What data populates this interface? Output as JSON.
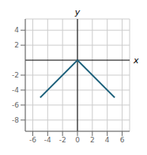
{
  "chart_data": {
    "type": "line",
    "xlabel": "x",
    "ylabel": "y",
    "x": [
      -5,
      0,
      5
    ],
    "values": [
      -5,
      0,
      -5
    ],
    "color": "#1a5f7a",
    "xlim": [
      -7,
      7
    ],
    "ylim": [
      -9.5,
      5.5
    ],
    "xticks": [
      -6,
      -4,
      -2,
      0,
      2,
      4,
      6
    ],
    "yticks": [
      -8,
      -6,
      -4,
      -2,
      2,
      4
    ],
    "grid": true
  }
}
